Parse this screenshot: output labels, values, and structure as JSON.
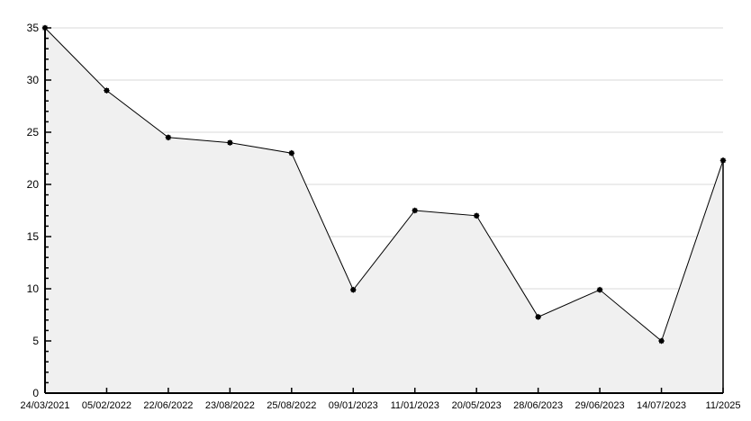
{
  "chart": {
    "background": "#ffffff"
  },
  "chart_data": {
    "type": "area",
    "title": "",
    "xlabel": "",
    "ylabel": "",
    "categories": [
      "24/03/2021",
      "05/02/2022",
      "22/06/2022",
      "23/08/2022",
      "25/08/2022",
      "09/01/2023",
      "11/01/2023",
      "20/05/2023",
      "28/06/2023",
      "29/06/2023",
      "14/07/2023",
      "11/2025"
    ],
    "values": [
      35,
      29,
      24.5,
      24,
      23,
      9.9,
      17.5,
      17,
      7.3,
      9.9,
      5,
      22.3
    ],
    "ylim": [
      0,
      35
    ],
    "y_major_ticks": [
      0,
      5,
      10,
      15,
      20,
      25,
      30,
      35
    ],
    "y_minor_tick_step": 1,
    "grid": "horizontal-major",
    "legend_position": "none",
    "marker": "black-square-star",
    "colors": {
      "line": "#000000",
      "marker": "#000000",
      "area_fill": "#f0f0f0",
      "grid_line": "#d8d8d8",
      "axis": "#000000",
      "tick_label": "#000000",
      "background": "#ffffff"
    }
  }
}
